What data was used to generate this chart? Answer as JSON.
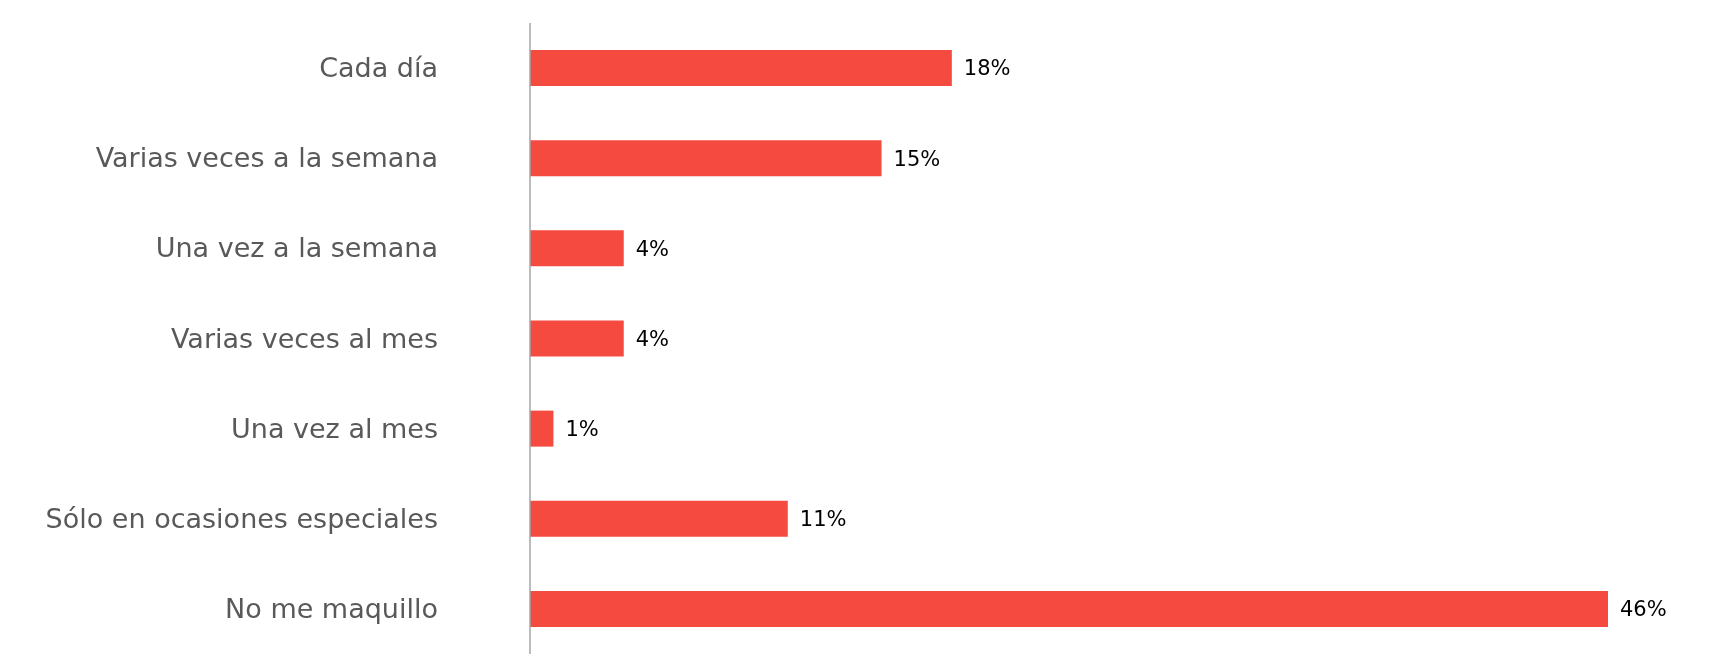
{
  "chart_data": {
    "type": "bar",
    "orientation": "horizontal",
    "categories": [
      "Cada día",
      "Varias veces a la semana",
      "Una vez a la semana",
      "Varias veces al mes",
      "Una vez al mes",
      "Sólo en ocasiones especiales",
      "No me maquillo"
    ],
    "values": [
      18,
      15,
      4,
      4,
      1,
      11,
      46
    ],
    "value_labels": [
      "18%",
      "15%",
      "4%",
      "4%",
      "1%",
      "11%",
      "46%"
    ],
    "color": "#f44a40"
  }
}
